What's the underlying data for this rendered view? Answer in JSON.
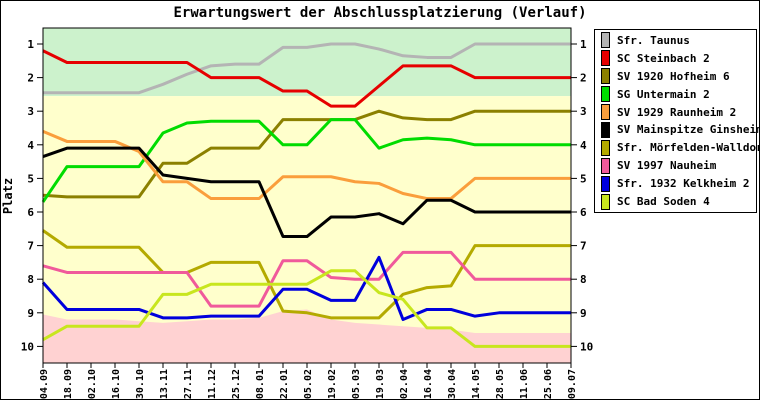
{
  "title": "Erwartungswert der Abschlussplatzierung (Verlauf)",
  "ylabel": "Platz",
  "chart_data": {
    "type": "line",
    "title": "Erwartungswert der Abschlussplatzierung (Verlauf)",
    "xlabel": "",
    "ylabel": "Platz",
    "y_axis_inverted": true,
    "ylim": [
      0.5,
      10.5
    ],
    "y_ticks": [
      1,
      2,
      3,
      4,
      5,
      6,
      7,
      8,
      9,
      10
    ],
    "grid": false,
    "legend_position": "right-outside",
    "x_labels": [
      "04.09",
      "18.09",
      "02.10",
      "16.10",
      "30.10",
      "13.11",
      "27.11",
      "11.12",
      "25.12",
      "08.01",
      "22.01",
      "05.02",
      "19.02",
      "05.03",
      "19.03",
      "02.04",
      "16.04",
      "30.04",
      "14.05",
      "28.05",
      "11.06",
      "25.06",
      "09.07"
    ],
    "zones": {
      "promotion_color": "#ccf2cc",
      "neutral_color": "#ffffcc",
      "relegation_color": "#ffd2d2",
      "promotion_boundary": 2.55,
      "relegation_boundary": [
        9.05,
        9.2,
        9.2,
        9.2,
        9.25,
        9.3,
        9.25,
        9.2,
        9.2,
        9.15,
        8.95,
        8.9,
        9.2,
        9.3,
        9.35,
        9.4,
        9.45,
        9.5,
        9.6,
        9.6,
        9.6,
        9.6,
        9.6
      ]
    },
    "series": [
      {
        "id": "taunus",
        "name": "Sfr. Taunus",
        "color": "#b4b4b4",
        "values": [
          2.45,
          2.45,
          2.45,
          2.45,
          2.45,
          2.2,
          1.9,
          1.65,
          1.6,
          1.6,
          1.1,
          1.1,
          1.0,
          1.0,
          1.15,
          1.35,
          1.4,
          1.4,
          1.0,
          1.0,
          1.0,
          1.0,
          1.0
        ]
      },
      {
        "id": "steinbach",
        "name": "SC Steinbach 2",
        "color": "#e60000",
        "values": [
          1.2,
          1.55,
          1.55,
          1.55,
          1.55,
          1.55,
          1.55,
          2.0,
          2.0,
          2.0,
          2.4,
          2.4,
          2.85,
          2.85,
          2.25,
          1.65,
          1.65,
          1.65,
          2.0,
          2.0,
          2.0,
          2.0,
          2.0
        ]
      },
      {
        "id": "hofheim",
        "name": "SV 1920 Hofheim 6",
        "color": "#8b8000",
        "values": [
          5.5,
          5.55,
          5.55,
          5.55,
          5.55,
          4.55,
          4.55,
          4.1,
          4.1,
          4.1,
          3.25,
          3.25,
          3.25,
          3.25,
          3.0,
          3.2,
          3.25,
          3.25,
          3.0,
          3.0,
          3.0,
          3.0,
          3.0
        ]
      },
      {
        "id": "untermain",
        "name": "SG Untermain 2",
        "color": "#00dc00",
        "values": [
          5.7,
          4.65,
          4.65,
          4.65,
          4.65,
          3.65,
          3.35,
          3.3,
          3.3,
          3.3,
          4.0,
          4.0,
          3.25,
          3.25,
          4.1,
          3.85,
          3.8,
          3.85,
          4.0,
          4.0,
          4.0,
          4.0,
          4.0
        ]
      },
      {
        "id": "raunheim",
        "name": "SV 1929 Raunheim 2",
        "color": "#fa9e3c",
        "values": [
          3.6,
          3.9,
          3.9,
          3.9,
          4.2,
          5.1,
          5.1,
          5.6,
          5.6,
          5.6,
          4.95,
          4.95,
          4.95,
          5.1,
          5.15,
          5.45,
          5.6,
          5.6,
          5.0,
          5.0,
          5.0,
          5.0,
          5.0
        ]
      },
      {
        "id": "mainspitze",
        "name": "SV Mainspitze Ginsheim",
        "color": "#000000",
        "values": [
          4.35,
          4.1,
          4.1,
          4.1,
          4.1,
          4.9,
          5.0,
          5.1,
          5.1,
          5.1,
          6.73,
          6.73,
          6.15,
          6.15,
          6.05,
          6.35,
          5.65,
          5.65,
          6.0,
          6.0,
          6.0,
          6.0,
          6.0
        ]
      },
      {
        "id": "moerfelden",
        "name": "Sfr. Mörfelden-Walldorf",
        "color": "#b4aa00",
        "values": [
          6.55,
          7.05,
          7.05,
          7.05,
          7.05,
          7.8,
          7.8,
          7.5,
          7.5,
          7.5,
          8.95,
          9.0,
          9.15,
          9.15,
          9.15,
          8.45,
          8.25,
          8.2,
          7.0,
          7.0,
          7.0,
          7.0,
          7.0
        ]
      },
      {
        "id": "nauheim",
        "name": "SV 1997 Nauheim",
        "color": "#f05a9b",
        "values": [
          7.6,
          7.8,
          7.8,
          7.8,
          7.8,
          7.8,
          7.8,
          8.8,
          8.8,
          8.8,
          7.45,
          7.45,
          7.95,
          8.0,
          8.0,
          7.2,
          7.2,
          7.2,
          8.0,
          8.0,
          8.0,
          8.0,
          8.0
        ]
      },
      {
        "id": "kelkheim",
        "name": "Sfr. 1932 Kelkheim 2",
        "color": "#0000dc",
        "values": [
          8.1,
          8.9,
          8.9,
          8.9,
          8.9,
          9.15,
          9.15,
          9.1,
          9.1,
          9.1,
          8.3,
          8.3,
          8.63,
          8.63,
          7.35,
          9.2,
          8.9,
          8.9,
          9.1,
          9.0,
          9.0,
          9.0,
          9.0
        ]
      },
      {
        "id": "badsoden",
        "name": "SC Bad Soden 4",
        "color": "#c8e61e",
        "values": [
          9.8,
          9.4,
          9.4,
          9.4,
          9.4,
          8.45,
          8.45,
          8.15,
          8.15,
          8.15,
          8.15,
          8.15,
          7.75,
          7.75,
          8.4,
          8.6,
          9.45,
          9.45,
          10.0,
          10.0,
          10.0,
          10.0,
          10.0
        ]
      }
    ]
  }
}
